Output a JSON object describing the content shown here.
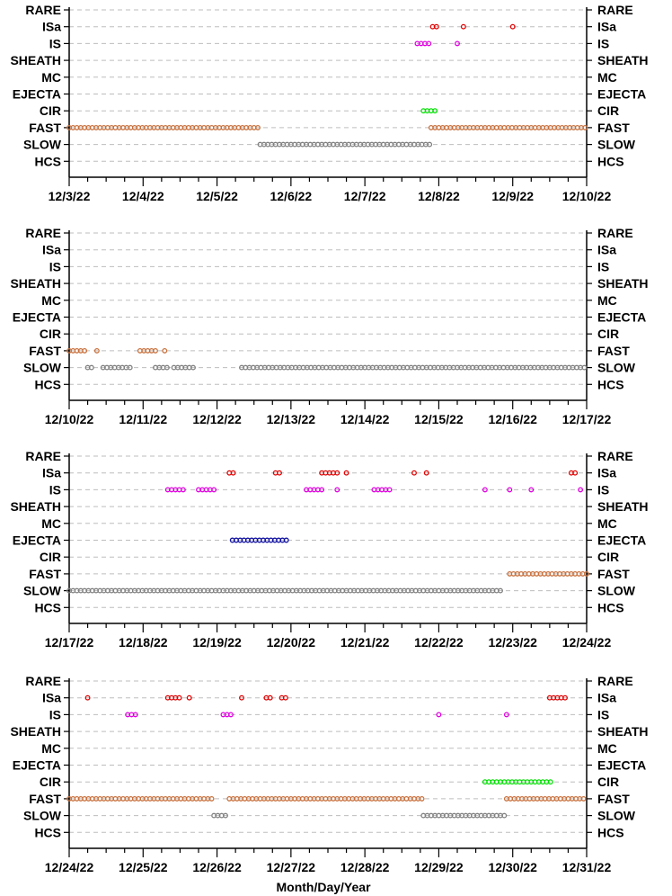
{
  "chart_data": {
    "type": "scatter",
    "xlabel": "Month/Day/Year",
    "categories": [
      "RARE",
      "ISa",
      "IS",
      "SHEATH",
      "MC",
      "EJECTA",
      "CIR",
      "FAST",
      "SLOW",
      "HCS"
    ],
    "colors": {
      "RARE": "#000000",
      "ISa": "#e00000",
      "IS": "#e000e0",
      "SHEATH": "#000000",
      "MC": "#000000",
      "EJECTA": "#1010a0",
      "CIR": "#00e000",
      "FAST": "#c8703c",
      "SLOW": "#808080",
      "HCS": "#000000"
    },
    "grid": true,
    "panels": [
      {
        "x_ticks": [
          "12/3/22",
          "12/4/22",
          "12/5/22",
          "12/6/22",
          "12/7/22",
          "12/8/22",
          "12/9/22",
          "12/10/22"
        ],
        "xlim": [
          "2022-12-03",
          "2022-12-10"
        ],
        "series": [
          {
            "category": "ISa",
            "segments": [
              [
                "2022-12-07 22:00",
                "2022-12-08 00:20"
              ]
            ],
            "points": [
              "2022-12-08 08:00",
              "2022-12-09 00:00"
            ]
          },
          {
            "category": "IS",
            "segments": [
              [
                "2022-12-07 17:00",
                "2022-12-07 21:00"
              ],
              [
                "2022-12-08 06:00",
                "2022-12-08 07:00"
              ]
            ],
            "points": []
          },
          {
            "category": "CIR",
            "segments": [
              [
                "2022-12-07 19:00",
                "2022-12-07 23:00"
              ]
            ],
            "points": []
          },
          {
            "category": "FAST",
            "segments": [
              [
                "2022-12-03 00:00",
                "2022-12-05 14:00"
              ],
              [
                "2022-12-07 21:30",
                "2022-12-10 00:00"
              ]
            ],
            "points": []
          },
          {
            "category": "SLOW",
            "segments": [
              [
                "2022-12-05 14:00",
                "2022-12-07 21:30"
              ]
            ],
            "points": []
          }
        ]
      },
      {
        "x_ticks": [
          "12/10/22",
          "12/11/22",
          "12/12/22",
          "12/13/22",
          "12/14/22",
          "12/15/22",
          "12/16/22",
          "12/17/22"
        ],
        "xlim": [
          "2022-12-10",
          "2022-12-17"
        ],
        "series": [
          {
            "category": "FAST",
            "segments": [
              [
                "2022-12-10 00:00",
                "2022-12-10 06:00"
              ],
              [
                "2022-12-10 09:00",
                "2022-12-10 10:00"
              ],
              [
                "2022-12-10 23:00",
                "2022-12-11 04:00"
              ],
              [
                "2022-12-11 07:00",
                "2022-12-11 08:00"
              ]
            ],
            "points": []
          },
          {
            "category": "SLOW",
            "segments": [
              [
                "2022-12-10 06:00",
                "2022-12-10 08:00"
              ],
              [
                "2022-12-10 11:00",
                "2022-12-10 20:00"
              ],
              [
                "2022-12-11 04:00",
                "2022-12-11 08:00"
              ],
              [
                "2022-12-11 10:00",
                "2022-12-11 17:00"
              ],
              [
                "2022-12-12 08:00",
                "2022-12-17 00:00"
              ]
            ],
            "points": []
          }
        ]
      },
      {
        "x_ticks": [
          "12/17/22",
          "12/18/22",
          "12/19/22",
          "12/20/22",
          "12/21/22",
          "12/22/22",
          "12/23/22",
          "12/24/22"
        ],
        "xlim": [
          "2022-12-17",
          "2022-12-24"
        ],
        "series": [
          {
            "category": "ISa",
            "segments": [
              [
                "2022-12-19 04:00",
                "2022-12-19 06:00"
              ],
              [
                "2022-12-19 19:00",
                "2022-12-19 21:00"
              ],
              [
                "2022-12-20 10:00",
                "2022-12-20 15:00"
              ],
              [
                "2022-12-20 18:00",
                "2022-12-20 19:00"
              ],
              [
                "2022-12-21 16:00",
                "2022-12-21 17:00"
              ],
              [
                "2022-12-21 20:00",
                "2022-12-21 21:00"
              ],
              [
                "2022-12-23 19:00",
                "2022-12-23 21:00"
              ]
            ],
            "points": []
          },
          {
            "category": "IS",
            "segments": [
              [
                "2022-12-18 08:00",
                "2022-12-18 13:00"
              ],
              [
                "2022-12-18 18:00",
                "2022-12-18 23:00"
              ],
              [
                "2022-12-20 05:00",
                "2022-12-20 10:00"
              ],
              [
                "2022-12-20 15:00",
                "2022-12-20 16:00"
              ],
              [
                "2022-12-21 03:00",
                "2022-12-21 08:00"
              ],
              [
                "2022-12-23 22:00",
                "2022-12-23 23:00"
              ]
            ],
            "points": [
              "2022-12-22 15:00",
              "2022-12-22 23:00",
              "2022-12-23 06:00"
            ]
          },
          {
            "category": "EJECTA",
            "segments": [
              [
                "2022-12-19 05:00",
                "2022-12-19 23:00"
              ]
            ],
            "points": []
          },
          {
            "category": "FAST",
            "segments": [
              [
                "2022-12-22 23:00",
                "2022-12-24 00:00"
              ]
            ],
            "points": []
          },
          {
            "category": "SLOW",
            "segments": [
              [
                "2022-12-17 00:00",
                "2022-12-22 21:00"
              ]
            ],
            "points": []
          }
        ]
      },
      {
        "x_ticks": [
          "12/24/22",
          "12/25/22",
          "12/26/22",
          "12/27/22",
          "12/28/22",
          "12/29/22",
          "12/30/22",
          "12/31/22"
        ],
        "xlim": [
          "2022-12-24",
          "2022-12-31"
        ],
        "series": [
          {
            "category": "ISa",
            "segments": [
              [
                "2022-12-25 08:00",
                "2022-12-25 12:00"
              ],
              [
                "2022-12-26 16:00",
                "2022-12-26 18:00"
              ],
              [
                "2022-12-26 21:00",
                "2022-12-26 23:00"
              ],
              [
                "2022-12-30 12:00",
                "2022-12-30 17:00"
              ]
            ],
            "points": [
              "2022-12-24 06:00",
              "2022-12-25 15:00",
              "2022-12-26 08:00"
            ]
          },
          {
            "category": "IS",
            "segments": [
              [
                "2022-12-24 19:00",
                "2022-12-24 22:00"
              ],
              [
                "2022-12-26 02:00",
                "2022-12-26 05:00"
              ],
              [
                "2022-12-29 22:00",
                "2022-12-29 23:00"
              ]
            ],
            "points": [
              "2022-12-29 00:00"
            ]
          },
          {
            "category": "CIR",
            "segments": [
              [
                "2022-12-29 15:00",
                "2022-12-30 13:00"
              ]
            ],
            "points": []
          },
          {
            "category": "FAST",
            "segments": [
              [
                "2022-12-24 00:00",
                "2022-12-25 23:00"
              ],
              [
                "2022-12-26 04:00",
                "2022-12-28 19:00"
              ],
              [
                "2022-12-29 22:00",
                "2022-12-31 00:00"
              ]
            ],
            "points": []
          },
          {
            "category": "SLOW",
            "segments": [
              [
                "2022-12-25 23:00",
                "2022-12-26 03:00"
              ],
              [
                "2022-12-28 19:00",
                "2022-12-29 22:00"
              ]
            ],
            "points": []
          }
        ]
      }
    ]
  }
}
